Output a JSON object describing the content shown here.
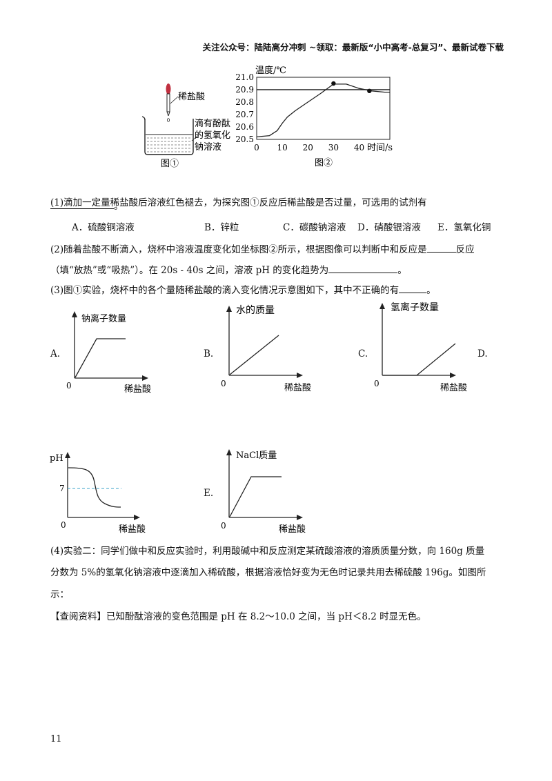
{
  "header": {
    "text": "关注公众号：陆陆高分冲刺  ~领取：最新版“小中高考-总复习”、最新试卷下载"
  },
  "figure1": {
    "label_acid": "稀盐酸",
    "label_solution_l1": "滴有酚酞",
    "label_solution_l2": "的氢氧化",
    "label_solution_l3": "钠溶液",
    "caption": "图①"
  },
  "figure2": {
    "caption": "图②",
    "chart_data": {
      "type": "line",
      "ylabel": "温度/℃",
      "xlabel": "时间/s",
      "xticks": [
        "0",
        "10",
        "20",
        "30",
        "40"
      ],
      "yticks": [
        "20.5",
        "20.6",
        "20.7",
        "20.8",
        "20.9",
        "21.0"
      ],
      "xlim": [
        0,
        52
      ],
      "ylim": [
        20.5,
        21.0
      ],
      "reference_line_y": 20.9,
      "series": [
        {
          "x": [
            0,
            5,
            8,
            10,
            12,
            15,
            20,
            25,
            30,
            35,
            40,
            45,
            50,
            52
          ],
          "y": [
            20.52,
            20.53,
            20.57,
            20.63,
            20.68,
            20.73,
            20.8,
            20.87,
            20.945,
            20.945,
            20.91,
            20.89,
            20.88,
            20.88
          ]
        }
      ],
      "points": [
        {
          "x": 30,
          "y": 20.95
        },
        {
          "x": 44,
          "y": 20.89
        }
      ]
    }
  },
  "q1": {
    "line1": "(1)滴加一定量稀盐酸后溶液红色褪去，为探究图①反应后稀盐酸是否过量，可选用的试剂有",
    "line2_end": "。",
    "options": [
      "A．硫酸铜溶液",
      "B．锌粒",
      "C．碳酸钠溶液",
      "D．硝酸银溶液",
      "E．氢氧化铜"
    ]
  },
  "q2": {
    "l1a": "(2)随着盐酸不断滴入，烧杯中溶液温度变化如坐标图②所示，根据图像可以判断中和反应是",
    "l1b": "反应",
    "l2a": "（填“放热”或“吸热”）。在 20s - 40s 之间，溶液 pH 的变化趋势为",
    "l2b": "。"
  },
  "q3": {
    "l1a": "(3)图①实验，烧杯中的各个量随稀盐酸的滴入变化情况示意图如下，其中不正确的有",
    "l1b": "。"
  },
  "graphs": {
    "A": {
      "letter": "A.",
      "ylabel": "钠离子数量",
      "xlabel": "稀盐酸",
      "origin": "0"
    },
    "B": {
      "letter": "B.",
      "ylabel": "水的质量",
      "xlabel": "稀盐酸",
      "origin": "0"
    },
    "C": {
      "letter": "C.",
      "ylabel": "氢离子数量",
      "xlabel": "稀盐酸",
      "origin": "0"
    },
    "D": {
      "letter": "D.",
      "ylabel": "pH",
      "xlabel": "稀盐酸",
      "origin": "0",
      "mark": "7"
    },
    "E": {
      "letter": "E.",
      "ylabel": "NaCl质量",
      "xlabel": "稀盐酸",
      "origin": "0"
    }
  },
  "q4": {
    "l1": "(4)实验二：同学们做中和反应实验时，利用酸碱中和反应测定某硫酸溶液的溶质质量分数，向 160g 质量",
    "l2": "分数为 5%的氢氧化钠溶液中逐滴加入稀硫酸，根据溶液恰好变为无色时记录共用去稀硫酸 196g。如图所",
    "l3": "示："
  },
  "info": {
    "text": "【查阅资料】已知酚酞溶液的变色范围是 pH 在 8.2～10.0 之间，当 pH＜8.2 时显无色。"
  },
  "page_number": "11"
}
